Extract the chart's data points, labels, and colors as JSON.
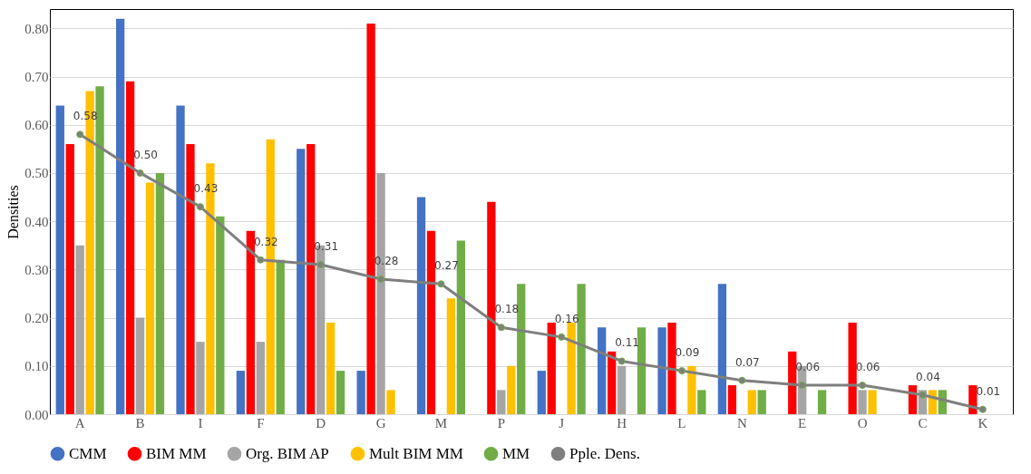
{
  "chart_data": {
    "type": "bar",
    "ylabel": "Densities",
    "categories": [
      "A",
      "B",
      "I",
      "F",
      "D",
      "G",
      "M",
      "P",
      "J",
      "H",
      "L",
      "N",
      "E",
      "O",
      "C",
      "K"
    ],
    "series": [
      {
        "name": "CMM",
        "color": "#4472c4",
        "values": [
          0.64,
          0.82,
          0.64,
          0.09,
          0.55,
          0.09,
          0.45,
          null,
          0.09,
          0.18,
          0.18,
          0.27,
          null,
          null,
          null,
          null
        ]
      },
      {
        "name": "BIM MM",
        "color": "#ff0000",
        "values": [
          0.56,
          0.69,
          0.56,
          0.38,
          0.56,
          0.81,
          0.38,
          0.44,
          0.19,
          0.13,
          0.19,
          0.06,
          0.13,
          0.19,
          0.06,
          0.06
        ]
      },
      {
        "name": "Org. BIM AP",
        "color": "#a5a5a5",
        "values": [
          0.35,
          0.2,
          0.15,
          0.15,
          0.35,
          0.5,
          null,
          0.05,
          null,
          0.1,
          null,
          null,
          0.1,
          0.05,
          0.05,
          null
        ]
      },
      {
        "name": "Mult BIM MM",
        "color": "#ffc000",
        "values": [
          0.67,
          0.48,
          0.52,
          0.57,
          0.19,
          0.05,
          0.24,
          0.1,
          0.19,
          null,
          0.1,
          0.05,
          null,
          0.05,
          0.05,
          null
        ]
      },
      {
        "name": "MM",
        "color": "#70ad47",
        "values": [
          0.68,
          0.5,
          0.41,
          0.32,
          0.09,
          null,
          0.36,
          0.27,
          0.27,
          0.18,
          0.05,
          0.05,
          0.05,
          null,
          0.05,
          null
        ]
      },
      {
        "name": "Pple. Dens.",
        "type": "line",
        "color": "#7f7f7f",
        "marker": "circle",
        "values": [
          0.58,
          0.5,
          0.43,
          0.32,
          0.31,
          0.28,
          0.27,
          0.18,
          0.16,
          0.11,
          0.09,
          0.07,
          0.06,
          0.06,
          0.04,
          0.01
        ],
        "value_labels": [
          "0.58",
          "0.50",
          "0.43",
          "0.32",
          "0.31",
          "0.28",
          "0.27",
          "0.18",
          "0.16",
          "0.11",
          "0.09",
          "0.07",
          "0.06",
          "0.06",
          "0.04",
          "0.01"
        ]
      }
    ],
    "ylim": [
      0,
      0.84
    ],
    "yticks": [
      {
        "value": 0,
        "label": "0.00"
      },
      {
        "value": 0.1,
        "label": "0.10"
      },
      {
        "value": 0.2,
        "label": "0.20"
      },
      {
        "value": 0.3,
        "label": "0.30"
      },
      {
        "value": 0.4,
        "label": "0.40"
      },
      {
        "value": 0.5,
        "label": "0.50"
      },
      {
        "value": 0.6,
        "label": "0.60"
      },
      {
        "value": 0.7,
        "label": "0.70"
      },
      {
        "value": 0.8,
        "label": "0.80"
      }
    ],
    "grid": "y",
    "legend": "bottom"
  }
}
